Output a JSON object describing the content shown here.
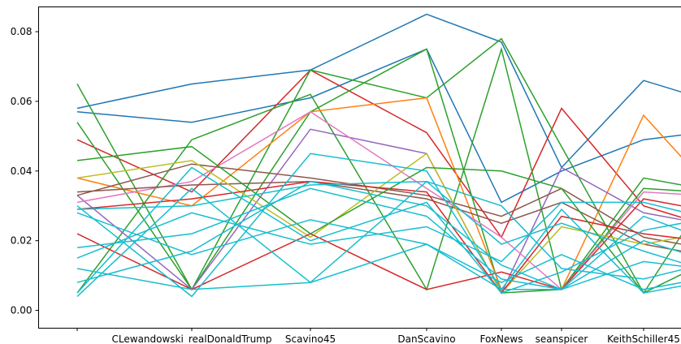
{
  "chart_data": {
    "type": "line",
    "title": "",
    "xlabel": "",
    "ylabel": "",
    "categories": [
      "",
      "CLewandowski_realDonaldTrump",
      "Scavino45",
      "DanScavino",
      "FoxNews",
      "seanspicer",
      "KeithSchiller45",
      ""
    ],
    "y_ticks": [
      "0.00",
      "0.02",
      "0.04",
      "0.06",
      "0.08"
    ],
    "ylim": [
      -0.005,
      0.087
    ],
    "grid": false,
    "legend": "none",
    "series": [
      {
        "color": "#1f77b4",
        "values": [
          0.058,
          0.065,
          0.069,
          0.085,
          0.077,
          0.041,
          0.066,
          0.061
        ]
      },
      {
        "color": "#1f77b4",
        "values": [
          0.057,
          0.054,
          0.061,
          0.075,
          0.031,
          0.04,
          0.049,
          0.051
        ]
      },
      {
        "color": "#d62728",
        "values": [
          0.049,
          0.034,
          0.069,
          0.051,
          0.021,
          0.058,
          0.03,
          0.025
        ]
      },
      {
        "color": "#2ca02c",
        "values": [
          0.065,
          0.006,
          0.069,
          0.061,
          0.078,
          0.047,
          0.005,
          0.03
        ]
      },
      {
        "color": "#2ca02c",
        "values": [
          0.054,
          0.006,
          0.057,
          0.075,
          0.005,
          0.006,
          0.035,
          0.034
        ]
      },
      {
        "color": "#2ca02c",
        "values": [
          0.005,
          0.049,
          0.062,
          0.006,
          0.075,
          0.006,
          0.038,
          0.035
        ]
      },
      {
        "color": "#ff7f0e",
        "values": [
          0.038,
          0.03,
          0.057,
          0.061,
          0.006,
          0.006,
          0.056,
          0.038
        ]
      },
      {
        "color": "#9467bd",
        "values": [
          0.033,
          0.006,
          0.052,
          0.045,
          0.005,
          0.041,
          0.028,
          0.025
        ]
      },
      {
        "color": "#e377c2",
        "values": [
          0.031,
          0.037,
          0.057,
          0.035,
          0.021,
          0.006,
          0.034,
          0.033
        ]
      },
      {
        "color": "#8c564b",
        "values": [
          0.033,
          0.042,
          0.038,
          0.033,
          0.027,
          0.035,
          0.021,
          0.018
        ]
      },
      {
        "color": "#8c564b",
        "values": [
          0.034,
          0.036,
          0.037,
          0.032,
          0.025,
          0.031,
          0.019,
          0.016
        ]
      },
      {
        "color": "#bcbd22",
        "values": [
          0.038,
          0.043,
          0.021,
          0.045,
          0.005,
          0.024,
          0.019,
          0.022
        ]
      },
      {
        "color": "#d62728",
        "values": [
          0.029,
          0.032,
          0.037,
          0.034,
          0.005,
          0.027,
          0.022,
          0.02
        ]
      },
      {
        "color": "#d62728",
        "values": [
          0.022,
          0.006,
          0.022,
          0.006,
          0.011,
          0.006,
          0.032,
          0.029
        ]
      },
      {
        "color": "#2ca02c",
        "values": [
          0.043,
          0.047,
          0.022,
          0.041,
          0.04,
          0.035,
          0.005,
          0.013
        ]
      },
      {
        "color": "#17becf",
        "values": [
          0.029,
          0.03,
          0.036,
          0.037,
          0.019,
          0.025,
          0.017,
          0.012
        ]
      },
      {
        "color": "#17becf",
        "values": [
          0.03,
          0.004,
          0.045,
          0.04,
          0.006,
          0.006,
          0.014,
          0.012
        ]
      },
      {
        "color": "#17becf",
        "values": [
          0.012,
          0.006,
          0.008,
          0.019,
          0.006,
          0.029,
          0.005,
          0.008
        ]
      },
      {
        "color": "#17becf",
        "values": [
          0.005,
          0.041,
          0.02,
          0.031,
          0.005,
          0.011,
          0.023,
          0.026
        ]
      },
      {
        "color": "#17becf",
        "values": [
          0.018,
          0.022,
          0.035,
          0.027,
          0.009,
          0.006,
          0.027,
          0.021
        ]
      },
      {
        "color": "#17becf",
        "values": [
          0.015,
          0.028,
          0.019,
          0.024,
          0.014,
          0.031,
          0.031,
          0.027
        ]
      },
      {
        "color": "#17becf",
        "values": [
          0.004,
          0.035,
          0.008,
          0.037,
          0.03,
          0.012,
          0.009,
          0.013
        ]
      },
      {
        "color": "#17becf",
        "values": [
          0.028,
          0.016,
          0.026,
          0.019,
          0.008,
          0.016,
          0.006,
          0.009
        ]
      },
      {
        "color": "#17becf",
        "values": [
          0.008,
          0.017,
          0.037,
          0.03,
          0.013,
          0.006,
          0.02,
          0.015
        ]
      }
    ]
  }
}
